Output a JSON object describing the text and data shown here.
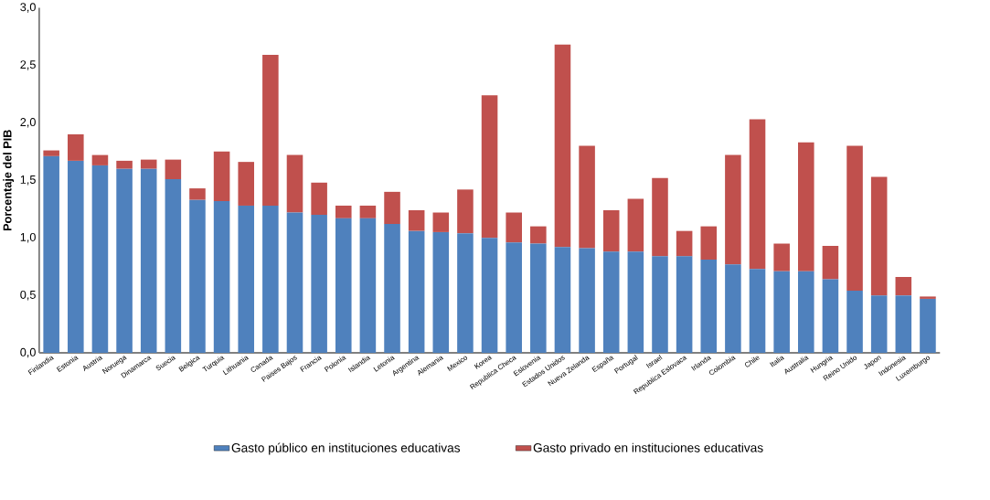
{
  "chart_data": {
    "type": "bar",
    "stacked": true,
    "ylabel": "Porcentaje del PIB",
    "categories": [
      "Finlandia",
      "Estonia",
      "Austria",
      "Noruega",
      "Dinamarca",
      "Suecia",
      "Belgica",
      "Turquia",
      "Lithuania",
      "Canada",
      "Paises Bajos",
      "Francia",
      "Polonia",
      "Islandia",
      "Letonia",
      "Argentina",
      "Alemania",
      "Mexico",
      "Korea",
      "Republica Checa",
      "Eslovenia",
      "Estados Unidos",
      "Nueva Zelanda",
      "España",
      "Portugal",
      "Israel",
      "Republica Eslovaca",
      "Irlanda",
      "Colombia",
      "Chile",
      "Italia",
      "Australia",
      "Hungria",
      "Reino Unido",
      "Japon",
      "Indonesia",
      "Luxemburgo"
    ],
    "series": [
      {
        "name": "Gasto público en instituciones educativas",
        "color": "#4f81bd",
        "values": [
          1.71,
          1.67,
          1.63,
          1.6,
          1.6,
          1.51,
          1.33,
          1.32,
          1.28,
          1.28,
          1.22,
          1.2,
          1.17,
          1.17,
          1.12,
          1.06,
          1.05,
          1.04,
          1.0,
          0.96,
          0.95,
          0.92,
          0.91,
          0.88,
          0.88,
          0.84,
          0.84,
          0.81,
          0.77,
          0.73,
          0.71,
          0.71,
          0.64,
          0.54,
          0.5,
          0.5,
          0.47
        ]
      },
      {
        "name": "Gasto privado en instituciones educativas",
        "color": "#c0504d",
        "values": [
          0.05,
          0.23,
          0.09,
          0.07,
          0.08,
          0.17,
          0.1,
          0.43,
          0.38,
          1.31,
          0.5,
          0.28,
          0.11,
          0.11,
          0.28,
          0.18,
          0.17,
          0.38,
          1.24,
          0.26,
          0.15,
          1.76,
          0.89,
          0.36,
          0.46,
          0.68,
          0.22,
          0.29,
          0.95,
          1.3,
          0.24,
          1.12,
          0.29,
          1.26,
          1.03,
          0.16,
          0.02
        ]
      }
    ],
    "ylim": [
      0,
      3
    ],
    "yticks": [
      {
        "value": 0,
        "label": "0,0"
      },
      {
        "value": 0.5,
        "label": "0,5"
      },
      {
        "value": 1,
        "label": "1,0"
      },
      {
        "value": 1.5,
        "label": "1,5"
      },
      {
        "value": 2,
        "label": "2,0"
      },
      {
        "value": 2.5,
        "label": "2,5"
      },
      {
        "value": 3,
        "label": "3,0"
      }
    ],
    "legend": "bottom"
  }
}
